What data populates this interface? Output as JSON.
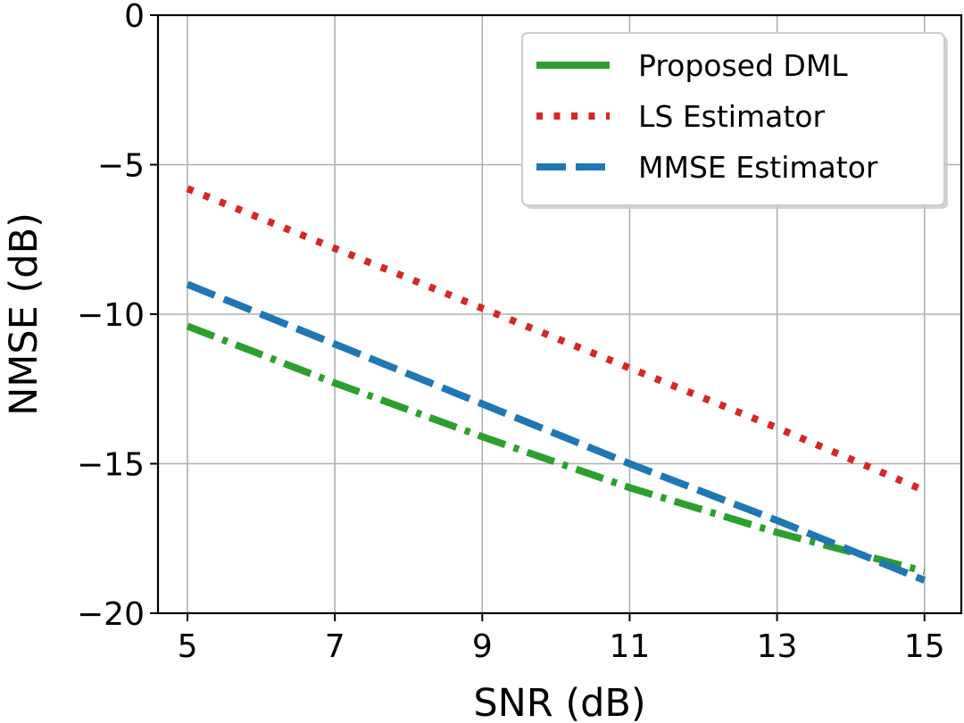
{
  "chart_data": {
    "type": "line",
    "title": "",
    "xlabel": "SNR (dB)",
    "ylabel": "NMSE (dB)",
    "xlim": [
      4.6,
      15.5
    ],
    "ylim": [
      -20,
      0
    ],
    "xticks": [
      5,
      7,
      9,
      11,
      13,
      15
    ],
    "yticks": [
      0,
      -5,
      -10,
      -15,
      -20
    ],
    "xtick_labels": [
      "5",
      "7",
      "9",
      "11",
      "13",
      "15"
    ],
    "ytick_labels": [
      "0",
      "−5",
      "−10",
      "−15",
      "−20"
    ],
    "grid": true,
    "legend_position": "top-right",
    "series": [
      {
        "name": "Proposed DML",
        "style": "dashdot",
        "color": "#2ca02c",
        "x": [
          5,
          7,
          9,
          11,
          13,
          15
        ],
        "y": [
          -10.4,
          -12.3,
          -14.1,
          -15.8,
          -17.3,
          -18.6
        ]
      },
      {
        "name": "LS Estimator",
        "style": "dotted",
        "color": "#d62728",
        "x": [
          5,
          7,
          9,
          11,
          13,
          15
        ],
        "y": [
          -5.8,
          -7.8,
          -9.8,
          -11.8,
          -13.8,
          -15.9
        ]
      },
      {
        "name": "MMSE Estimator",
        "style": "dashed",
        "color": "#1f77b4",
        "x": [
          5,
          7,
          9,
          11,
          13,
          15
        ],
        "y": [
          -9.0,
          -11.0,
          -13.0,
          -15.0,
          -16.9,
          -18.9
        ]
      }
    ],
    "legend_order": [
      "Proposed DML",
      "LS Estimator",
      "MMSE Estimator"
    ]
  }
}
